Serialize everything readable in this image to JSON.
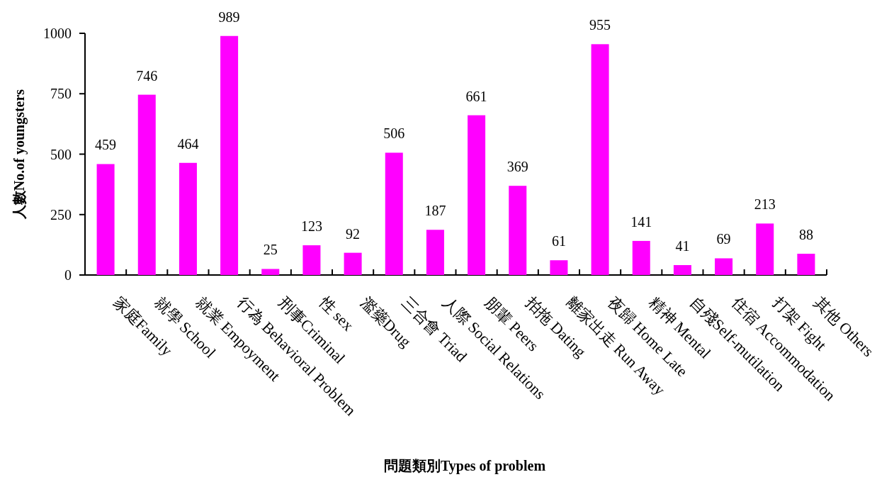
{
  "chart_data": {
    "type": "bar",
    "xlabel": "問題類別Types of problem",
    "ylabel": "人數No.of youngsters",
    "categories": [
      "家庭Family",
      "就學 School",
      "就業 Empoyment",
      "行為 Behavioral Problem",
      "刑事Criminal",
      "性 sex",
      "濫藥Drug",
      "三合會 Triad",
      "人際 Social Relations",
      "朋輩 Peers",
      "拍拖 Dating",
      "離家出走 Run Away",
      "夜歸 Home Late",
      "精神 Mental",
      "自殘Self-mutilation",
      "住宿 Accommodation",
      "打架 Fight",
      "其他 Others"
    ],
    "values": [
      459,
      746,
      464,
      989,
      25,
      123,
      92,
      506,
      187,
      661,
      369,
      61,
      955,
      141,
      41,
      69,
      213,
      88
    ],
    "color": "#ff00ff",
    "ylim": [
      0,
      1000
    ],
    "yticks": [
      0,
      250,
      500,
      750,
      1000
    ],
    "data_labels": true
  }
}
